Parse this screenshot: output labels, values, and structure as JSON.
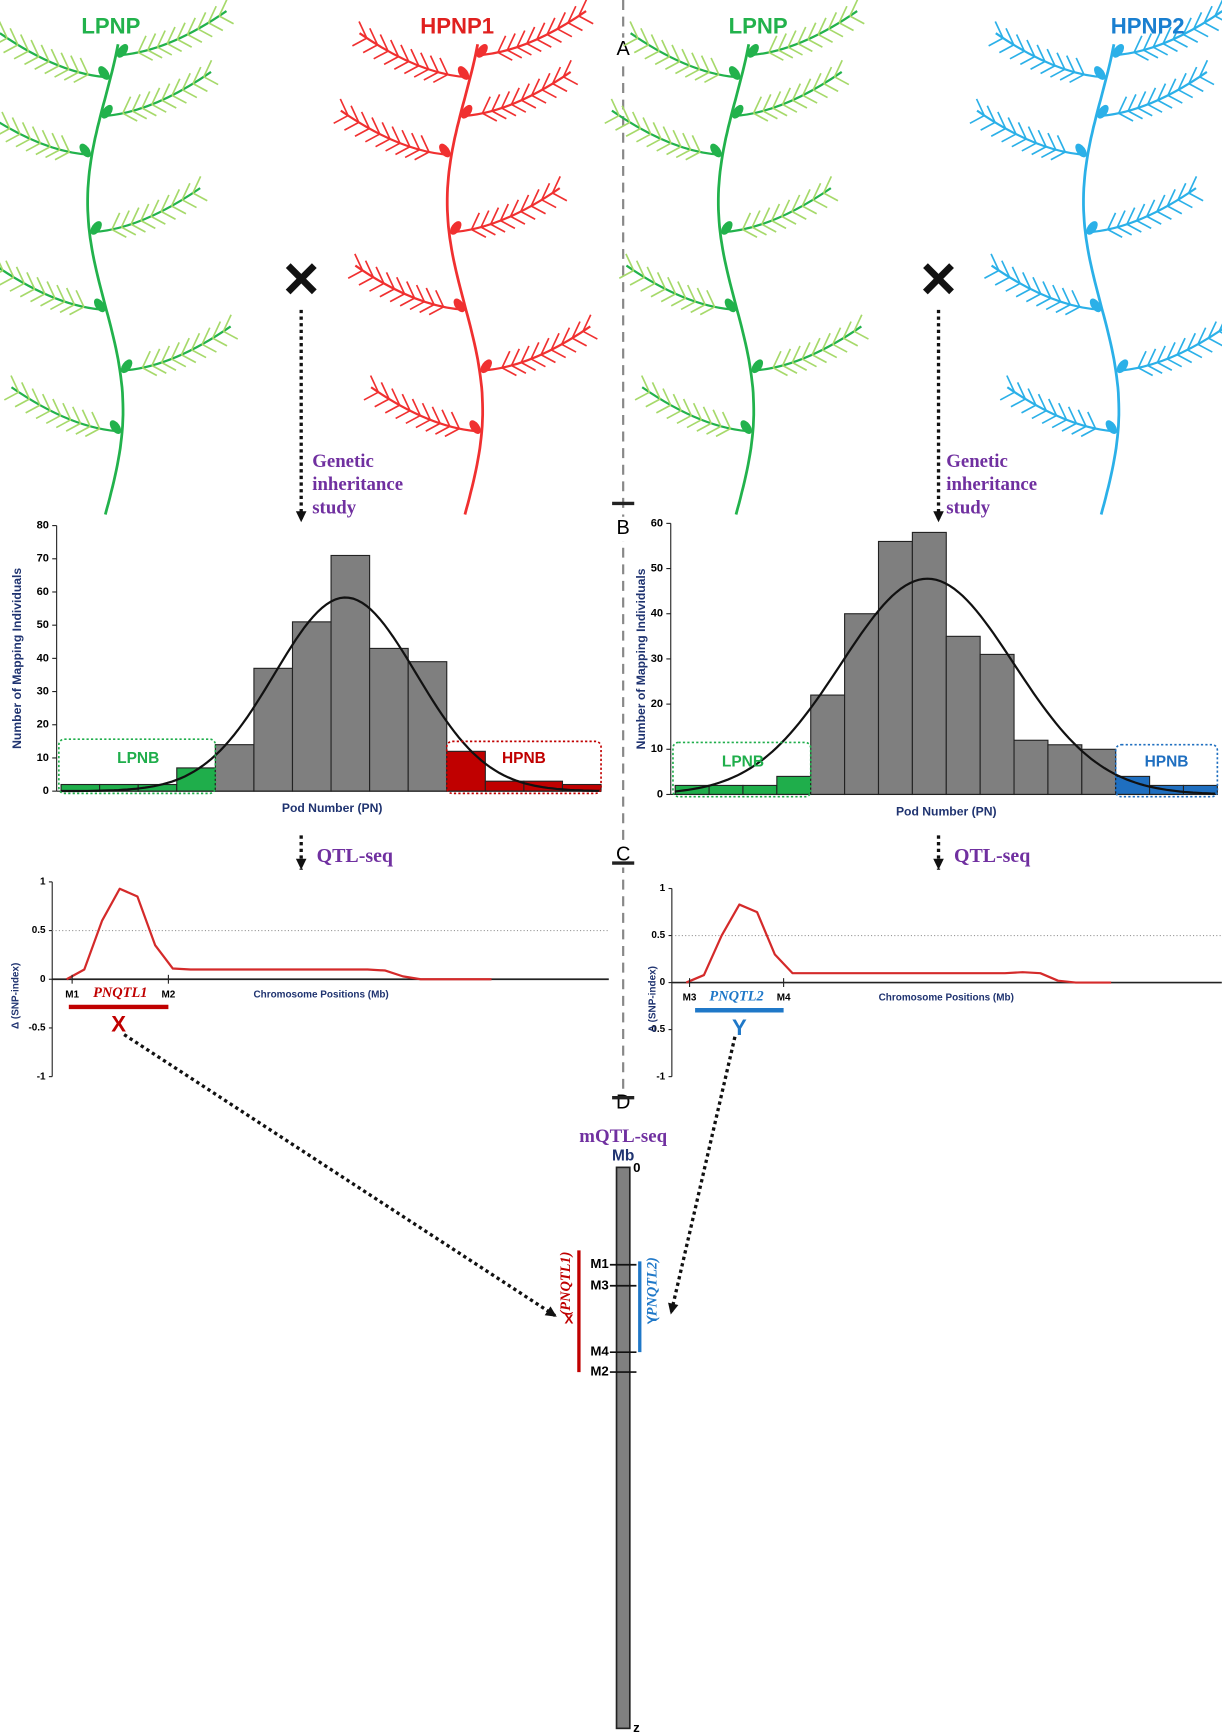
{
  "panel_labels": [
    "A",
    "B",
    "C",
    "D"
  ],
  "left": {
    "parents": [
      "LPNP",
      "HPNP1"
    ],
    "cross_symbol": "×",
    "inheritance_label": [
      "Genetic",
      "inheritance",
      "study"
    ],
    "histogram": {
      "type": "bar",
      "ylabel": "Number of Mapping Individuals",
      "xlabel": "Pod Number (PN)",
      "ylim": [
        0,
        80
      ],
      "yticks": [
        0,
        10,
        20,
        30,
        40,
        50,
        60,
        70,
        80
      ],
      "values": [
        2,
        2,
        2,
        7,
        14,
        37,
        51,
        71,
        43,
        39,
        12,
        3,
        3,
        2
      ],
      "colors": [
        "#1fae4b",
        "#1fae4b",
        "#1fae4b",
        "#1fae4b",
        "#7f7f7f",
        "#7f7f7f",
        "#7f7f7f",
        "#7f7f7f",
        "#7f7f7f",
        "#7f7f7f",
        "#c00000",
        "#c00000",
        "#c00000",
        "#c00000"
      ],
      "low_bulk": "LPNB",
      "high_bulk": "HPNB"
    },
    "qtl_label": "QTL-seq",
    "qtl_plot": {
      "type": "line",
      "ylabel": "Δ (SNP-index)",
      "xlabel": "Chromosome Positions (Mb)",
      "ylim": [
        -1,
        1
      ],
      "yticks": [
        -1,
        -0.5,
        0,
        0.5,
        1
      ],
      "threshold": 0.5,
      "color": "#d42a2a",
      "values": [
        0,
        0.1,
        0.6,
        0.93,
        0.85,
        0.35,
        0.11,
        0.1,
        0.1,
        0.1,
        0.1,
        0.1,
        0.1,
        0.1,
        0.1,
        0.1,
        0.1,
        0.1,
        0.09,
        0.03,
        0,
        0,
        0,
        0,
        0
      ],
      "markers": [
        "M1",
        "M2"
      ],
      "qtl": "PNQTL1",
      "qtl_letter": "X"
    }
  },
  "right": {
    "parents": [
      "LPNP",
      "HPNP2"
    ],
    "cross_symbol": "×",
    "inheritance_label": [
      "Genetic",
      "inheritance",
      "study"
    ],
    "histogram": {
      "type": "bar",
      "ylabel": "Number of Mapping Individuals",
      "xlabel": "Pod Number (PN)",
      "ylim": [
        0,
        60
      ],
      "yticks": [
        0,
        10,
        20,
        30,
        40,
        50,
        60
      ],
      "values": [
        2,
        2,
        2,
        4,
        22,
        40,
        56,
        58,
        35,
        31,
        12,
        11,
        10,
        4,
        2,
        2
      ],
      "colors": [
        "#1fae4b",
        "#1fae4b",
        "#1fae4b",
        "#1fae4b",
        "#7f7f7f",
        "#7f7f7f",
        "#7f7f7f",
        "#7f7f7f",
        "#7f7f7f",
        "#7f7f7f",
        "#7f7f7f",
        "#7f7f7f",
        "#7f7f7f",
        "#1f6fc0",
        "#1f6fc0",
        "#1f6fc0"
      ],
      "low_bulk": "LPNB",
      "high_bulk": "HPNB"
    },
    "qtl_label": "QTL-seq",
    "qtl_plot": {
      "type": "line",
      "ylabel": "Δ (SNP-index)",
      "xlabel": "Chromosome Positions (Mb)",
      "ylim": [
        -1,
        1
      ],
      "yticks": [
        -1,
        -0.5,
        0,
        0.5,
        1
      ],
      "threshold": 0.5,
      "color": "#d42a2a",
      "values": [
        0,
        0.08,
        0.5,
        0.83,
        0.75,
        0.3,
        0.1,
        0.1,
        0.1,
        0.1,
        0.1,
        0.1,
        0.1,
        0.1,
        0.1,
        0.1,
        0.1,
        0.1,
        0.1,
        0.11,
        0.1,
        0.02,
        0,
        0,
        0
      ],
      "markers": [
        "M3",
        "M4"
      ],
      "qtl": "PNQTL2",
      "qtl_letter": "Y"
    }
  },
  "chromosome": {
    "method": "mQTL-seq",
    "unit": "Mb",
    "start": "0",
    "end": "z",
    "markers": [
      "M1",
      "M3",
      "M4",
      "M2"
    ],
    "qtl1": "(PNQTL1)",
    "qtl1_letter": "X",
    "qtl2": "(PNQTL2)",
    "qtl2_letter": "Y"
  }
}
